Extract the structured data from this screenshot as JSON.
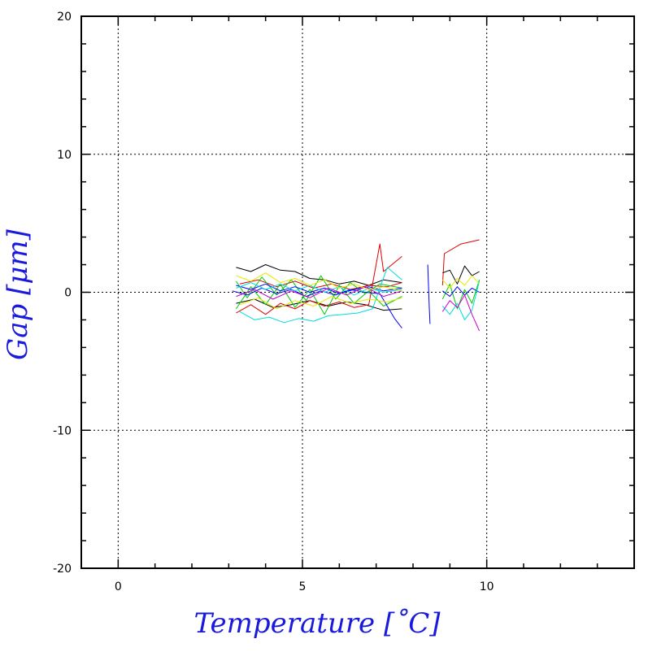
{
  "chart_data": {
    "type": "line",
    "title": "",
    "xlabel": "Temperature [˚C]",
    "ylabel": "Gap [μm]",
    "xlim": [
      -1,
      14
    ],
    "ylim": [
      -20,
      20
    ],
    "x_ticks": [
      0,
      5,
      10
    ],
    "x_tick_labels": [
      "0",
      "5",
      "10"
    ],
    "y_ticks": [
      20,
      10,
      0,
      -10,
      -20
    ],
    "y_tick_labels": [
      "20",
      "10",
      "0",
      "-10",
      "-20"
    ],
    "grid": true,
    "legend": "none",
    "colors": {
      "axis_title": "#1a1adc",
      "grid": "#000000",
      "series": [
        "#000000",
        "#dd0000",
        "#00cc00",
        "#0000ff",
        "#00dddd",
        "#cc00cc",
        "#e8e800"
      ]
    },
    "series": [
      {
        "color": "#000000",
        "x": [
          3.2,
          3.6,
          4.0,
          4.4,
          4.8,
          5.2,
          5.6,
          6.0,
          6.4,
          6.8,
          7.2,
          7.7
        ],
        "y": [
          1.8,
          1.5,
          2.0,
          1.6,
          1.5,
          1.0,
          0.9,
          0.6,
          0.8,
          0.5,
          0.9,
          0.7
        ]
      },
      {
        "color": "#000000",
        "x": [
          3.2,
          3.7,
          4.2,
          4.7,
          5.2,
          5.7,
          6.2,
          6.7,
          7.2,
          7.7
        ],
        "y": [
          -0.8,
          -0.5,
          -1.1,
          -0.9,
          -0.6,
          -1.0,
          -0.7,
          -0.9,
          -1.3,
          -1.2
        ]
      },
      {
        "color": "#dd0000",
        "x": [
          3.2,
          3.6,
          4.0,
          4.4,
          4.8,
          5.2,
          5.6,
          6.0,
          6.4,
          6.8,
          7.1,
          7.2,
          7.7
        ],
        "y": [
          -1.5,
          -0.9,
          -1.6,
          -0.8,
          -1.2,
          -0.6,
          -1.0,
          -0.7,
          -1.1,
          -0.9,
          3.5,
          1.5,
          2.6
        ]
      },
      {
        "color": "#dd0000",
        "x": [
          3.3,
          3.8,
          4.3,
          4.8,
          5.3,
          5.8,
          6.3,
          6.8,
          7.3,
          7.7
        ],
        "y": [
          0.6,
          0.9,
          0.4,
          0.8,
          0.3,
          0.6,
          0.2,
          0.5,
          0.4,
          0.7
        ]
      },
      {
        "color": "#00cc00",
        "x": [
          3.2,
          3.5,
          3.9,
          4.3,
          4.7,
          5.1,
          5.5,
          5.9,
          6.3,
          6.7,
          7.1,
          7.7
        ],
        "y": [
          0.8,
          -0.4,
          1.1,
          -0.2,
          0.9,
          -0.6,
          1.2,
          -0.5,
          0.7,
          -0.1,
          0.6,
          0.3
        ]
      },
      {
        "color": "#00cc00",
        "x": [
          3.2,
          3.6,
          4.0,
          4.4,
          4.8,
          5.2,
          5.6,
          6.0,
          6.4,
          6.8,
          7.2,
          7.7
        ],
        "y": [
          -1.2,
          0.4,
          -0.9,
          0.6,
          -1.1,
          0.2,
          -1.6,
          0.5,
          -0.8,
          0.1,
          -1.0,
          -0.3
        ]
      },
      {
        "color": "#0000ff",
        "x": [
          3.1,
          3.5,
          3.9,
          4.3,
          4.7,
          5.1,
          5.5,
          5.9,
          6.3,
          6.7,
          7.1,
          7.5,
          7.7
        ],
        "y": [
          0.1,
          -0.2,
          0.3,
          -0.1,
          0.2,
          -0.3,
          0.1,
          -0.2,
          0.2,
          0.0,
          -0.1,
          -1.9,
          -2.6
        ]
      },
      {
        "color": "#0000ff",
        "x": [
          3.2,
          3.6,
          4.0,
          4.4,
          4.8,
          5.2,
          5.6,
          6.0,
          6.4,
          6.8,
          7.2,
          7.7
        ],
        "y": [
          0.5,
          0.2,
          0.6,
          0.1,
          0.4,
          0.0,
          0.3,
          -0.1,
          0.2,
          0.4,
          0.1,
          0.3
        ]
      },
      {
        "color": "#00dddd",
        "x": [
          3.3,
          3.7,
          4.1,
          4.5,
          4.9,
          5.3,
          5.7,
          6.1,
          6.5,
          6.9,
          7.3,
          7.7
        ],
        "y": [
          -1.4,
          -2.0,
          -1.8,
          -2.2,
          -1.9,
          -2.1,
          -1.7,
          -1.6,
          -1.5,
          -1.2,
          1.8,
          0.9
        ]
      },
      {
        "color": "#00dddd",
        "x": [
          3.2,
          3.6,
          4.0,
          4.4,
          4.8,
          5.2,
          5.6,
          6.0,
          6.4,
          6.8,
          7.2,
          7.7
        ],
        "y": [
          0.3,
          0.7,
          0.2,
          0.6,
          0.1,
          0.5,
          0.0,
          0.4,
          -0.2,
          0.3,
          0.0,
          0.2
        ]
      },
      {
        "color": "#cc00cc",
        "x": [
          3.2,
          3.7,
          4.2,
          4.7,
          5.2,
          5.7,
          6.2,
          6.7,
          7.2,
          7.7
        ],
        "y": [
          -0.3,
          0.2,
          -0.5,
          0.1,
          -0.4,
          0.3,
          -0.2,
          0.4,
          -0.3,
          0.1
        ]
      },
      {
        "color": "#e8e800",
        "x": [
          3.2,
          3.6,
          4.0,
          4.4,
          4.8,
          5.2,
          5.6,
          6.0,
          6.4,
          6.8,
          7.2,
          7.7
        ],
        "y": [
          1.2,
          0.8,
          1.4,
          0.7,
          1.0,
          0.5,
          0.9,
          0.3,
          0.6,
          0.2,
          0.4,
          0.1
        ]
      },
      {
        "color": "#e8e800",
        "x": [
          3.3,
          3.8,
          4.3,
          4.8,
          5.3,
          5.8,
          6.3,
          6.8,
          7.3,
          7.7
        ],
        "y": [
          -0.9,
          -0.4,
          -1.2,
          -0.6,
          -1.0,
          -0.3,
          -0.8,
          -0.5,
          -0.7,
          -0.4
        ]
      },
      {
        "color": "#0000ff",
        "x": [
          8.4,
          8.42,
          8.44,
          8.46
        ],
        "y": [
          2.0,
          0.5,
          -1.0,
          -2.3
        ]
      },
      {
        "color": "#dd0000",
        "x": [
          8.8,
          8.85,
          9.3,
          9.8
        ],
        "y": [
          0.5,
          2.8,
          3.5,
          3.8
        ]
      },
      {
        "color": "#000000",
        "x": [
          8.8,
          9.0,
          9.2,
          9.4,
          9.6,
          9.8
        ],
        "y": [
          1.4,
          1.6,
          0.6,
          1.9,
          1.2,
          1.5
        ]
      },
      {
        "color": "#00cc00",
        "x": [
          8.8,
          9.0,
          9.2,
          9.4,
          9.6,
          9.8
        ],
        "y": [
          -0.5,
          0.6,
          -1.2,
          0.2,
          -0.8,
          0.9
        ]
      },
      {
        "color": "#0000ff",
        "x": [
          8.8,
          9.0,
          9.2,
          9.4,
          9.6,
          9.8
        ],
        "y": [
          0.1,
          -0.3,
          0.4,
          -0.2,
          0.3,
          0.0
        ]
      },
      {
        "color": "#00dddd",
        "x": [
          8.8,
          9.0,
          9.2,
          9.4,
          9.6,
          9.8
        ],
        "y": [
          -1.0,
          -1.6,
          -0.8,
          -2.0,
          -1.3,
          0.8
        ]
      },
      {
        "color": "#cc00cc",
        "x": [
          8.8,
          9.0,
          9.2,
          9.4,
          9.6,
          9.8
        ],
        "y": [
          -1.4,
          -0.6,
          -1.1,
          -0.2,
          -1.6,
          -2.8
        ]
      },
      {
        "color": "#e8e800",
        "x": [
          8.8,
          9.0,
          9.2,
          9.4,
          9.6,
          9.8
        ],
        "y": [
          0.9,
          0.3,
          1.0,
          0.5,
          1.2,
          0.6
        ]
      }
    ]
  }
}
